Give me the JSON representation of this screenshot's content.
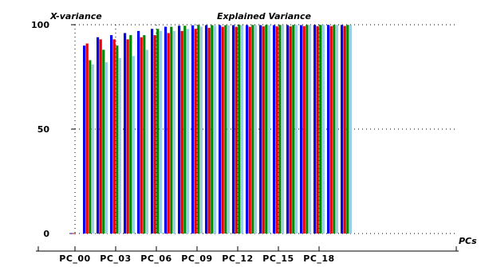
{
  "chart_data": {
    "type": "bar",
    "title": "Explained Variance",
    "ylabel": "X-variance",
    "xlabel": "PCs",
    "ylim": [
      0,
      100
    ],
    "yticks": [
      "0",
      "50",
      "100"
    ],
    "grid": "dotted",
    "tick_labels": [
      "PC_00",
      "PC_03",
      "PC_06",
      "PC_09",
      "PC_12",
      "PC_15",
      "PC_18"
    ],
    "colors": [
      "#0000ee",
      "#ee0000",
      "#008800",
      "#9ccfe6"
    ],
    "groups": [
      [
        0.2,
        0.2,
        0,
        0
      ],
      [
        90,
        91,
        83,
        81
      ],
      [
        94,
        93,
        88,
        82
      ],
      [
        95,
        93,
        90,
        84
      ],
      [
        96,
        93,
        95,
        85
      ],
      [
        97,
        94,
        95,
        88
      ],
      [
        98,
        95,
        98,
        97
      ],
      [
        99,
        96,
        99,
        97
      ],
      [
        99.5,
        97,
        99.5,
        98
      ],
      [
        99.7,
        98,
        99.8,
        99
      ],
      [
        99.8,
        98.5,
        99.8,
        99.5
      ],
      [
        99.8,
        99,
        99.8,
        99.7
      ],
      [
        99.8,
        99,
        99.9,
        99.8
      ],
      [
        99.8,
        99,
        99.9,
        99.8
      ],
      [
        99.8,
        99.2,
        99.9,
        99.8
      ],
      [
        99.8,
        99.2,
        99.9,
        99.9
      ],
      [
        99.8,
        99.2,
        99.9,
        99.9
      ],
      [
        99.8,
        99.3,
        99.9,
        99.9
      ],
      [
        99.9,
        99.3,
        99.9,
        99.9
      ],
      [
        99.9,
        99.3,
        99.9,
        99.9
      ],
      [
        99.9,
        99.4,
        99.9,
        99.9
      ]
    ]
  }
}
